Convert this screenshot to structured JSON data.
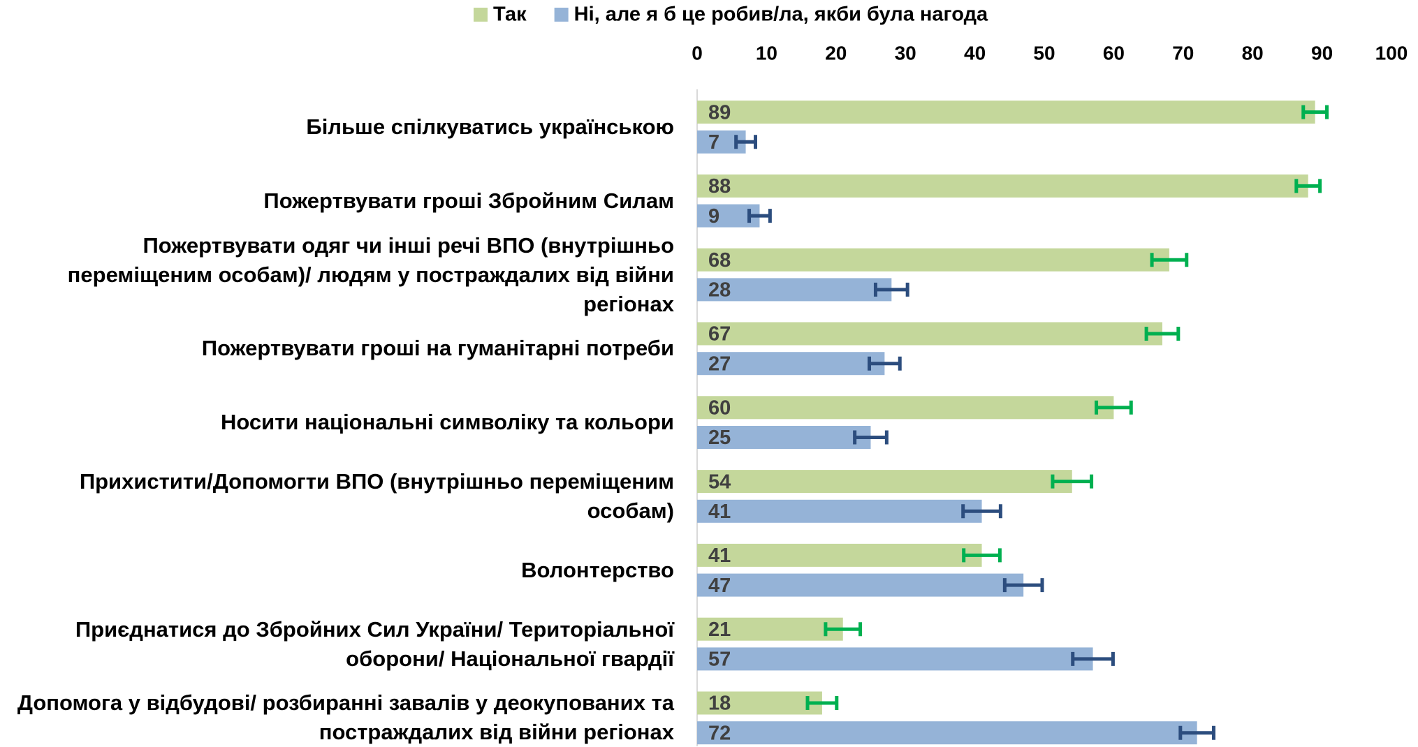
{
  "chart_data": {
    "type": "bar",
    "orientation": "horizontal",
    "categories": [
      "Більше спілкуватись українською",
      "Пожертвувати гроші Збройним Силам",
      "Пожертвувати одяг чи інші речі ВПО (внутрішньо переміщеним особам)/ людям у постраждалих від війни регіонах",
      "Пожертвувати гроші на гуманітарні потреби",
      "Носити національні символіку та кольори",
      "Прихистити/Допомогти ВПО (внутрішньо переміщеним особам)",
      "Волонтерство",
      "Приєднатися до Збройних Сил України/ Територіальної оборони/ Національної гвардії",
      "Допомога у відбудові/ розбиранні завалів у деокупованих та постраждалих від війни регіонах"
    ],
    "series": [
      {
        "name": "Так",
        "color": "#c4d79b",
        "error_color": "#00b050",
        "values": [
          89,
          88,
          68,
          67,
          60,
          54,
          41,
          21,
          18
        ],
        "errors": [
          1.7,
          1.7,
          2.5,
          2.3,
          2.5,
          2.8,
          2.6,
          2.5,
          2.1
        ]
      },
      {
        "name": "Ні, але я б це робив/ла, якби була нагода",
        "color": "#95b3d7",
        "error_color": "#2c4d7e",
        "values": [
          7,
          9,
          28,
          27,
          25,
          41,
          47,
          57,
          72
        ],
        "errors": [
          1.4,
          1.5,
          2.3,
          2.2,
          2.3,
          2.7,
          2.7,
          2.9,
          2.4
        ]
      }
    ],
    "xlim": [
      0,
      100
    ],
    "xticks": [
      0,
      10,
      20,
      30,
      40,
      50,
      60,
      70,
      80,
      90,
      100
    ],
    "legend": "top"
  }
}
